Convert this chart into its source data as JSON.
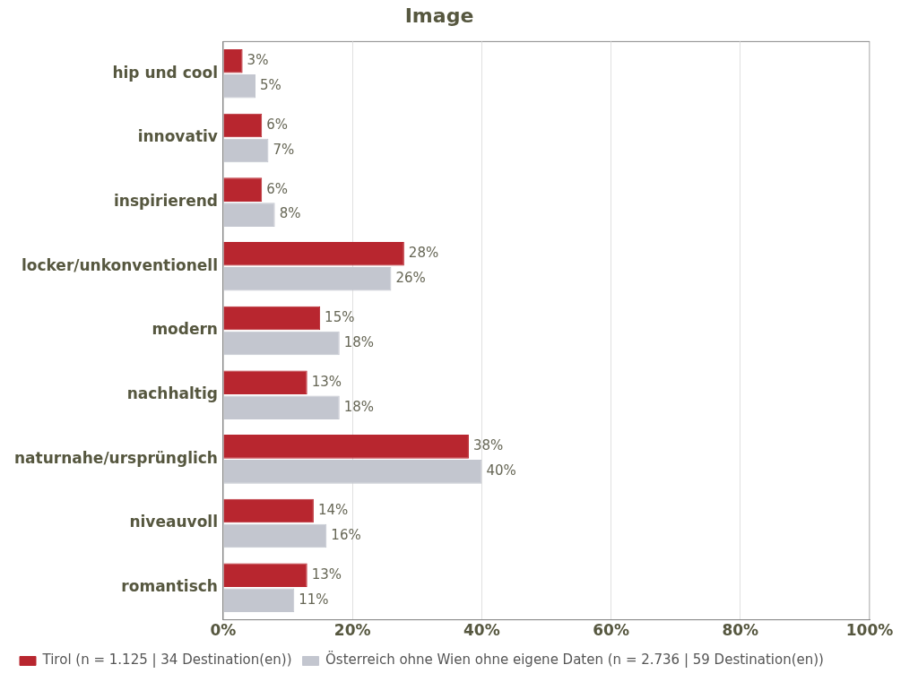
{
  "chart_data": {
    "type": "bar",
    "orientation": "horizontal",
    "title": "Image",
    "categories": [
      "hip und cool",
      "innovativ",
      "inspirierend",
      "locker/unkonventionell",
      "modern",
      "nachhaltig",
      "naturnahe/ursprünglich",
      "niveauvoll",
      "romantisch"
    ],
    "series": [
      {
        "name": "Tirol (n = 1.125 | 34 Destination(en))",
        "color": "#b8262f",
        "values": [
          3,
          6,
          6,
          28,
          15,
          13,
          38,
          14,
          13
        ],
        "value_labels": [
          "3%",
          "6%",
          "6%",
          "28%",
          "15%",
          "13%",
          "38%",
          "14%",
          "13%"
        ]
      },
      {
        "name": "Österreich ohne Wien ohne eigene Daten (n = 2.736 | 59 Destination(en))",
        "color": "#c3c6cf",
        "values": [
          5,
          7,
          8,
          26,
          18,
          18,
          40,
          16,
          11
        ],
        "value_labels": [
          "5%",
          "7%",
          "8%",
          "26%",
          "18%",
          "18%",
          "40%",
          "16%",
          "11%"
        ]
      }
    ],
    "xlim": [
      0,
      100
    ],
    "xticks": [
      {
        "value": 0,
        "label": "0%"
      },
      {
        "value": 20,
        "label": "20%"
      },
      {
        "value": 40,
        "label": "40%"
      },
      {
        "value": 60,
        "label": "60%"
      },
      {
        "value": 80,
        "label": "80%"
      },
      {
        "value": 100,
        "label": "100%"
      }
    ],
    "grid": "x",
    "legend": "bottom"
  }
}
